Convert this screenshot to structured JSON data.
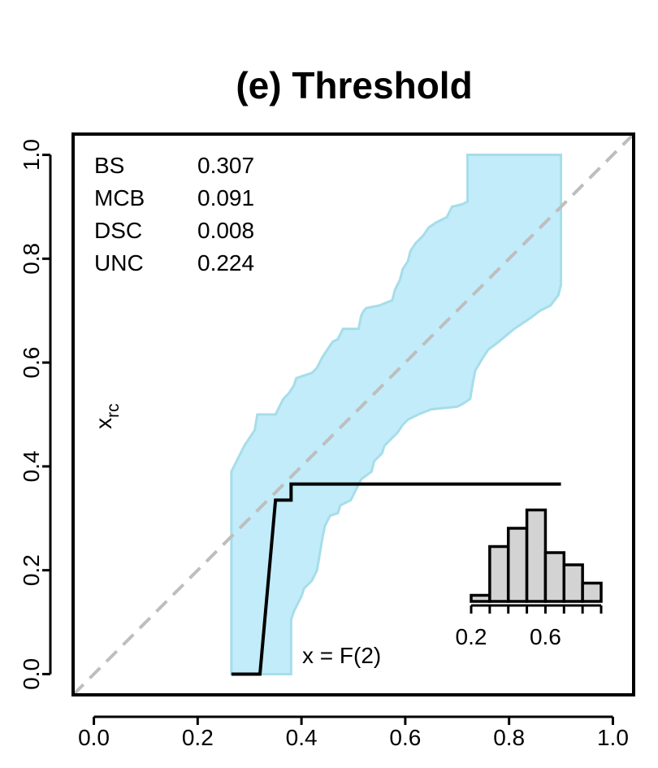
{
  "chart_data": {
    "type": "line",
    "title": "(e) Threshold",
    "xlabel": "",
    "ylabel": "x_rc",
    "xlim": [
      -0.04,
      1.04
    ],
    "ylim": [
      -0.04,
      1.04
    ],
    "x_ticks": [
      "0.0",
      "0.2",
      "0.4",
      "0.6",
      "0.8",
      "1.0"
    ],
    "y_ticks": [
      "0.0",
      "0.2",
      "0.4",
      "0.6",
      "0.8",
      "1.0"
    ],
    "grid": false,
    "diagonal": {
      "x": [
        -0.04,
        1.04
      ],
      "y": [
        -0.04,
        1.04
      ],
      "color": "#bebebe",
      "style": "dashed"
    },
    "band_color": "#c2ecfa",
    "band": {
      "upper": [
        [
          0.265,
          0.39
        ],
        [
          0.27,
          0.4
        ],
        [
          0.29,
          0.44
        ],
        [
          0.31,
          0.47
        ],
        [
          0.315,
          0.5
        ],
        [
          0.35,
          0.5
        ],
        [
          0.365,
          0.53
        ],
        [
          0.375,
          0.54
        ],
        [
          0.385,
          0.555
        ],
        [
          0.39,
          0.57
        ],
        [
          0.42,
          0.58
        ],
        [
          0.43,
          0.59
        ],
        [
          0.44,
          0.61
        ],
        [
          0.45,
          0.625
        ],
        [
          0.46,
          0.64
        ],
        [
          0.47,
          0.645
        ],
        [
          0.48,
          0.665
        ],
        [
          0.51,
          0.665
        ],
        [
          0.515,
          0.69
        ],
        [
          0.52,
          0.7
        ],
        [
          0.525,
          0.705
        ],
        [
          0.55,
          0.71
        ],
        [
          0.575,
          0.72
        ],
        [
          0.58,
          0.74
        ],
        [
          0.585,
          0.75
        ],
        [
          0.59,
          0.76
        ],
        [
          0.595,
          0.78
        ],
        [
          0.605,
          0.795
        ],
        [
          0.61,
          0.815
        ],
        [
          0.62,
          0.83
        ],
        [
          0.635,
          0.845
        ],
        [
          0.645,
          0.86
        ],
        [
          0.66,
          0.87
        ],
        [
          0.68,
          0.88
        ],
        [
          0.69,
          0.9
        ],
        [
          0.71,
          0.905
        ],
        [
          0.72,
          0.91
        ],
        [
          0.72,
          1.0
        ],
        [
          0.9,
          1.0
        ]
      ],
      "lower": [
        [
          0.9,
          0.75
        ],
        [
          0.895,
          0.73
        ],
        [
          0.88,
          0.71
        ],
        [
          0.86,
          0.7
        ],
        [
          0.84,
          0.685
        ],
        [
          0.81,
          0.665
        ],
        [
          0.78,
          0.64
        ],
        [
          0.76,
          0.625
        ],
        [
          0.75,
          0.61
        ],
        [
          0.735,
          0.585
        ],
        [
          0.73,
          0.56
        ],
        [
          0.725,
          0.53
        ],
        [
          0.71,
          0.52
        ],
        [
          0.7,
          0.515
        ],
        [
          0.65,
          0.51
        ],
        [
          0.625,
          0.5
        ],
        [
          0.605,
          0.49
        ],
        [
          0.595,
          0.48
        ],
        [
          0.585,
          0.465
        ],
        [
          0.57,
          0.45
        ],
        [
          0.56,
          0.44
        ],
        [
          0.555,
          0.425
        ],
        [
          0.54,
          0.41
        ],
        [
          0.535,
          0.39
        ],
        [
          0.515,
          0.375
        ],
        [
          0.505,
          0.355
        ],
        [
          0.495,
          0.335
        ],
        [
          0.475,
          0.325
        ],
        [
          0.47,
          0.31
        ],
        [
          0.455,
          0.305
        ],
        [
          0.45,
          0.295
        ],
        [
          0.445,
          0.285
        ],
        [
          0.44,
          0.26
        ],
        [
          0.435,
          0.23
        ],
        [
          0.43,
          0.2
        ],
        [
          0.42,
          0.18
        ],
        [
          0.405,
          0.165
        ],
        [
          0.4,
          0.15
        ],
        [
          0.395,
          0.14
        ],
        [
          0.385,
          0.12
        ],
        [
          0.38,
          0.105
        ],
        [
          0.38,
          0.0
        ],
        [
          0.265,
          0.0
        ]
      ]
    },
    "series": [
      {
        "color": "#000000",
        "x": [
          0.265,
          0.32,
          0.35,
          0.38,
          0.38,
          0.9
        ],
        "y": [
          0.0,
          0.0,
          0.335,
          0.335,
          0.366,
          0.366
        ]
      }
    ],
    "stats": [
      {
        "label": "BS",
        "value": "0.307"
      },
      {
        "label": "MCB",
        "value": "0.091"
      },
      {
        "label": "DSC",
        "value": "0.008"
      },
      {
        "label": "UNC",
        "value": "0.224"
      }
    ],
    "annotation": "x = F(2)",
    "inset_histogram": {
      "type": "bar",
      "color": "#d3d3d3",
      "bin_edges": [
        0.2,
        0.3,
        0.4,
        0.5,
        0.6,
        0.7,
        0.8,
        0.9
      ],
      "values": [
        1,
        9,
        12,
        15,
        8,
        6,
        3
      ],
      "x_ticks": [
        "0.2",
        "0.6"
      ]
    }
  }
}
